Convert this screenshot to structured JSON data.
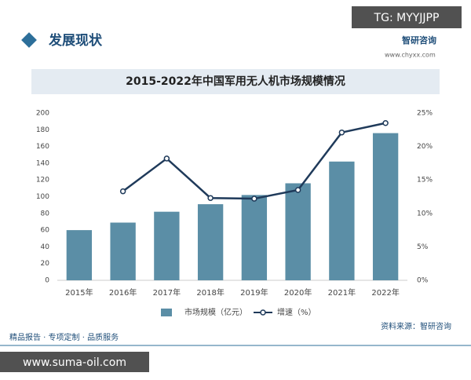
{
  "header": {
    "title": "发展现状",
    "logo": "智研咨询",
    "website": "www.chyxx.com"
  },
  "chart_data": {
    "type": "bar",
    "title": "2015-2022年中国军用无人机市场规模情况",
    "categories": [
      "2015年",
      "2016年",
      "2017年",
      "2018年",
      "2019年",
      "2020年",
      "2021年",
      "2022年"
    ],
    "series": [
      {
        "name": "市场规模（亿元）",
        "color": "#5b8ea6",
        "values": [
          60,
          69,
          82,
          91,
          102,
          116,
          142,
          176
        ]
      },
      {
        "name": "增速（%）",
        "color": "#1f3a5a",
        "type": "line",
        "axis": "y2",
        "values": [
          null,
          13.3,
          18.2,
          12.3,
          12.2,
          13.5,
          22.1,
          23.5
        ]
      }
    ],
    "ylim": [
      0,
      200
    ],
    "yticks": [
      0,
      20,
      40,
      60,
      80,
      100,
      120,
      140,
      160,
      180,
      200
    ],
    "y2lim": [
      0,
      25
    ],
    "y2ticks": [
      {
        "value": 0,
        "label": "0%"
      },
      {
        "value": 5,
        "label": "5%"
      },
      {
        "value": 10,
        "label": "10%"
      },
      {
        "value": 15,
        "label": "15%"
      },
      {
        "value": 20,
        "label": "20%"
      },
      {
        "value": 25,
        "label": "25%"
      }
    ],
    "legend": "bottom"
  },
  "footer": {
    "slogan": "精品报告 · 专项定制 · 品质服务",
    "source": "资料来源：智研咨询"
  },
  "overlays": {
    "top_right": "TG: MYYJJPP",
    "bottom_left": "www.suma-oil.com"
  }
}
